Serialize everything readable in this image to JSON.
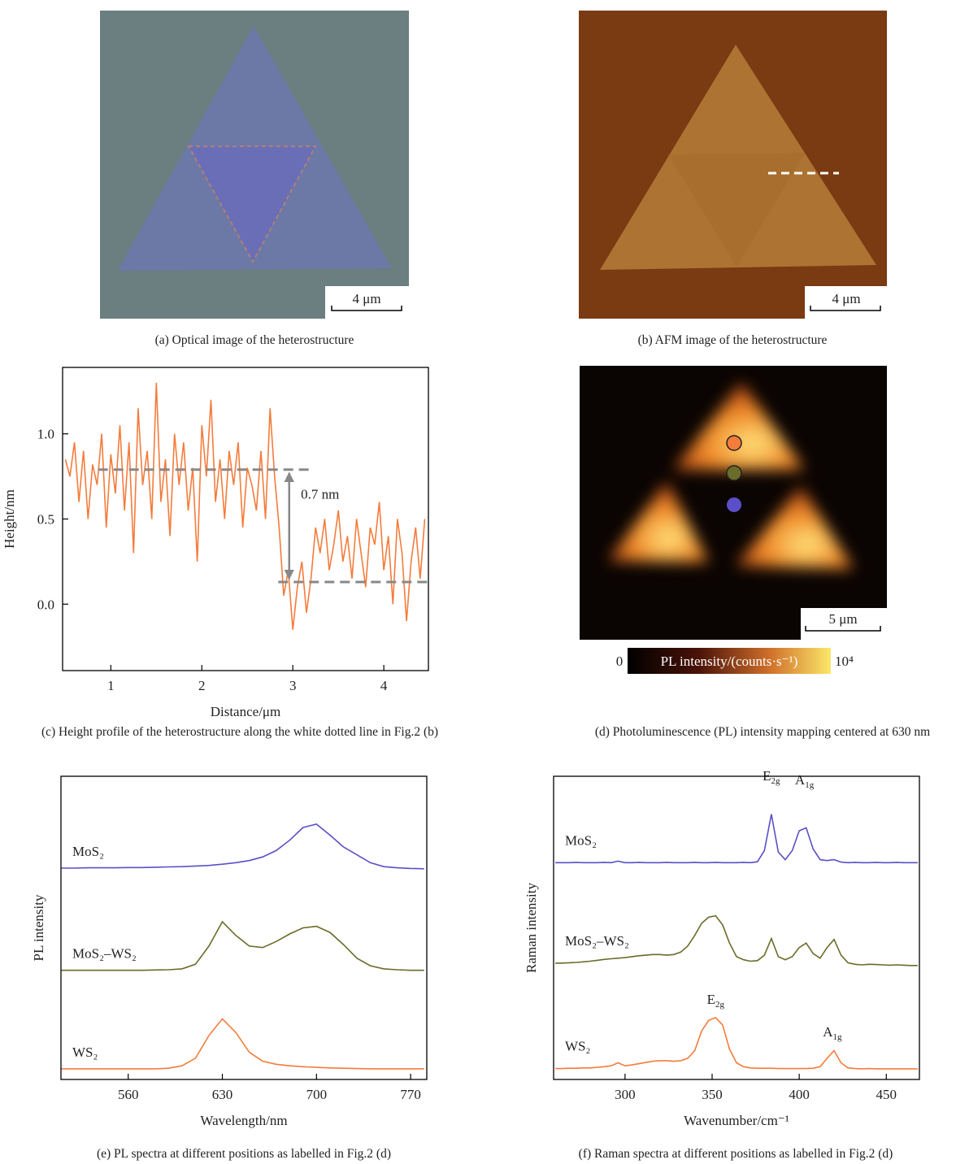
{
  "figures": [
    {
      "scale_bar": "4 μm",
      "caption": "(a) Optical image of the heterostructure"
    },
    {
      "scale_bar": "4 μm",
      "caption": "(b) AFM image of the heterostructure"
    },
    {
      "scale_bar": "5 μm",
      "colorbar_min": "0",
      "colorbar_label": "PL intensity/(counts·s⁻¹)",
      "colorbar_max": "10⁴",
      "caption": "(d) Photoluminescence (PL) intensity mapping centered at 630 nm"
    }
  ],
  "chart_data": [
    {
      "type": "line",
      "caption": "(c) Height profile of the heterostructure along the white dotted line in Fig.2 (b)",
      "xlabel": "Distance/μm",
      "ylabel": "Height/nm",
      "color": "#f47c3c",
      "xlim": [
        0.47,
        4.49
      ],
      "ylim": [
        -0.39,
        1.39
      ],
      "xticks": [
        1,
        2,
        3,
        4
      ],
      "yticks": [
        {
          "value": 0,
          "label": "0.0"
        },
        0.5,
        {
          "value": 1,
          "label": "1.0"
        }
      ],
      "x": [
        0.5,
        0.55,
        0.6,
        0.65,
        0.7,
        0.75,
        0.8,
        0.85,
        0.9,
        0.95,
        1.0,
        1.05,
        1.1,
        1.15,
        1.2,
        1.25,
        1.3,
        1.35,
        1.4,
        1.45,
        1.5,
        1.55,
        1.6,
        1.65,
        1.7,
        1.75,
        1.8,
        1.85,
        1.9,
        1.95,
        2.0,
        2.05,
        2.1,
        2.15,
        2.2,
        2.25,
        2.3,
        2.35,
        2.4,
        2.45,
        2.5,
        2.55,
        2.6,
        2.65,
        2.7,
        2.75,
        2.8,
        2.85,
        2.9,
        2.95,
        3.0,
        3.05,
        3.1,
        3.15,
        3.2,
        3.25,
        3.3,
        3.35,
        3.4,
        3.45,
        3.5,
        3.55,
        3.6,
        3.65,
        3.7,
        3.75,
        3.8,
        3.85,
        3.9,
        3.95,
        4.0,
        4.05,
        4.1,
        4.15,
        4.2,
        4.25,
        4.3,
        4.35,
        4.4,
        4.45
      ],
      "values": [
        0.85,
        0.75,
        0.95,
        0.6,
        0.9,
        0.5,
        0.82,
        0.7,
        1.0,
        0.45,
        0.88,
        0.65,
        1.05,
        0.55,
        0.95,
        0.3,
        1.15,
        0.7,
        0.9,
        0.5,
        1.3,
        0.6,
        0.85,
        0.4,
        1.0,
        0.7,
        0.95,
        0.55,
        0.8,
        0.25,
        1.05,
        0.75,
        1.2,
        0.6,
        0.85,
        0.5,
        0.9,
        0.7,
        0.95,
        0.45,
        0.8,
        0.7,
        0.55,
        0.9,
        0.5,
        1.15,
        0.75,
        0.45,
        0.05,
        0.2,
        -0.15,
        0.1,
        0.25,
        -0.05,
        0.15,
        0.45,
        0.3,
        0.5,
        0.2,
        0.35,
        0.55,
        0.25,
        0.4,
        0.15,
        0.5,
        0.3,
        0.1,
        0.45,
        0.35,
        0.6,
        0.2,
        0.4,
        0.0,
        0.5,
        0.3,
        -0.1,
        0.25,
        0.45,
        0.15,
        0.5
      ],
      "hlines": [
        {
          "value": 0.79,
          "x": [
            0.86,
            3.2
          ]
        },
        {
          "value": 0.13,
          "x": [
            2.84,
            4.49
          ]
        }
      ],
      "arrow": {
        "x": 2.96,
        "from": 0.79,
        "to": 0.13
      },
      "annotations": [
        {
          "text": "0.7 nm",
          "x": 3.3,
          "y": 0.62
        }
      ]
    },
    {
      "type": "line",
      "caption": "(e) PL spectra at different positions as labelled in Fig.2 (d)",
      "xlabel": "Wavelength/nm",
      "ylabel": "PL intensity",
      "xlim": [
        510,
        782
      ],
      "ylim": [
        0,
        10
      ],
      "xticks": [
        560,
        630,
        700,
        770
      ],
      "x": [
        510,
        520,
        530,
        540,
        550,
        560,
        570,
        580,
        590,
        600,
        610,
        620,
        630,
        640,
        650,
        660,
        670,
        680,
        690,
        700,
        710,
        720,
        730,
        740,
        750,
        760,
        770,
        780
      ],
      "series": [
        {
          "name": "MoS₂",
          "color": "#5b4fc8",
          "values": [
            6.97,
            6.97,
            6.98,
            6.98,
            6.98,
            6.99,
            6.99,
            7.0,
            7.01,
            7.02,
            7.04,
            7.06,
            7.1,
            7.15,
            7.22,
            7.34,
            7.55,
            7.89,
            8.31,
            8.42,
            8.06,
            7.67,
            7.41,
            7.15,
            7.02,
            6.98,
            6.96,
            6.95
          ]
        },
        {
          "name": "MoS₂–WS₂",
          "color": "#6b6b2a",
          "values": [
            3.6,
            3.6,
            3.6,
            3.6,
            3.6,
            3.6,
            3.6,
            3.61,
            3.62,
            3.65,
            3.8,
            4.4,
            5.2,
            4.75,
            4.4,
            4.35,
            4.55,
            4.8,
            5.0,
            5.05,
            4.85,
            4.45,
            4.0,
            3.75,
            3.65,
            3.62,
            3.6,
            3.6
          ]
        },
        {
          "name": "WS₂",
          "color": "#f47c3c",
          "values": [
            0.35,
            0.35,
            0.35,
            0.35,
            0.35,
            0.35,
            0.35,
            0.35,
            0.37,
            0.45,
            0.7,
            1.45,
            2.0,
            1.55,
            0.9,
            0.6,
            0.5,
            0.45,
            0.42,
            0.4,
            0.38,
            0.37,
            0.36,
            0.35,
            0.35,
            0.35,
            0.35,
            0.35
          ]
        }
      ]
    },
    {
      "type": "line",
      "caption": "(f) Raman spectra at different positions as labelled in Fig.2 (d)",
      "xlabel": "Wavenumber/cm⁻¹",
      "ylabel": "Raman intensity",
      "xlim": [
        259,
        469
      ],
      "ylim": [
        0,
        10
      ],
      "xticks": [
        300,
        350,
        400,
        450
      ],
      "x": [
        260,
        264,
        268,
        272,
        276,
        280,
        284,
        288,
        292,
        296,
        300,
        304,
        308,
        312,
        316,
        320,
        324,
        328,
        332,
        336,
        340,
        344,
        348,
        352,
        356,
        360,
        364,
        368,
        372,
        376,
        380,
        384,
        388,
        392,
        396,
        400,
        404,
        408,
        412,
        416,
        420,
        424,
        428,
        432,
        436,
        440,
        444,
        448,
        452,
        456,
        460,
        464,
        468
      ],
      "series": [
        {
          "name": "MoS₂",
          "color": "#5b4fc8",
          "values": [
            7.15,
            7.15,
            7.15,
            7.16,
            7.15,
            7.15,
            7.15,
            7.16,
            7.15,
            7.2,
            7.15,
            7.15,
            7.16,
            7.15,
            7.15,
            7.15,
            7.16,
            7.15,
            7.15,
            7.15,
            7.16,
            7.15,
            7.15,
            7.16,
            7.15,
            7.15,
            7.15,
            7.16,
            7.15,
            7.18,
            7.55,
            8.75,
            7.5,
            7.25,
            7.55,
            8.2,
            8.3,
            7.6,
            7.25,
            7.22,
            7.25,
            7.17,
            7.15,
            7.16,
            7.15,
            7.15,
            7.16,
            7.15,
            7.15,
            7.16,
            7.15,
            7.15,
            7.15
          ]
        },
        {
          "name": "MoS₂–WS₂",
          "color": "#6b6b2a",
          "values": [
            3.83,
            3.84,
            3.85,
            3.86,
            3.88,
            3.9,
            3.93,
            3.96,
            3.98,
            4.0,
            4.02,
            4.05,
            4.08,
            4.1,
            4.12,
            4.12,
            4.1,
            4.12,
            4.2,
            4.4,
            4.75,
            5.15,
            5.35,
            5.4,
            5.1,
            4.5,
            4.05,
            3.95,
            3.9,
            3.92,
            4.1,
            4.65,
            4.05,
            3.95,
            4.05,
            4.35,
            4.5,
            4.15,
            4.0,
            4.35,
            4.62,
            4.1,
            3.85,
            3.8,
            3.78,
            3.8,
            3.79,
            3.78,
            3.77,
            3.78,
            3.77,
            3.76,
            3.76
          ]
        },
        {
          "name": "WS₂",
          "color": "#f47c3c",
          "values": [
            0.36,
            0.36,
            0.37,
            0.37,
            0.38,
            0.38,
            0.4,
            0.42,
            0.45,
            0.55,
            0.45,
            0.48,
            0.52,
            0.56,
            0.6,
            0.62,
            0.62,
            0.6,
            0.62,
            0.7,
            0.95,
            1.6,
            1.95,
            2.04,
            1.8,
            1.0,
            0.55,
            0.42,
            0.38,
            0.37,
            0.37,
            0.37,
            0.36,
            0.36,
            0.36,
            0.36,
            0.36,
            0.37,
            0.42,
            0.7,
            0.95,
            0.55,
            0.38,
            0.36,
            0.35,
            0.36,
            0.35,
            0.35,
            0.35,
            0.35,
            0.35,
            0.35,
            0.35
          ]
        }
      ],
      "annotations": [
        {
          "text": "E",
          "sub": "2g",
          "x": 384,
          "y": 9.87
        },
        {
          "text": "A",
          "sub": "1g",
          "x": 403,
          "y": 9.73
        },
        {
          "text": "E",
          "sub": "2g",
          "x": 352,
          "y": 2.49
        },
        {
          "text": "A",
          "sub": "1g",
          "x": 419,
          "y": 1.42
        }
      ]
    }
  ]
}
